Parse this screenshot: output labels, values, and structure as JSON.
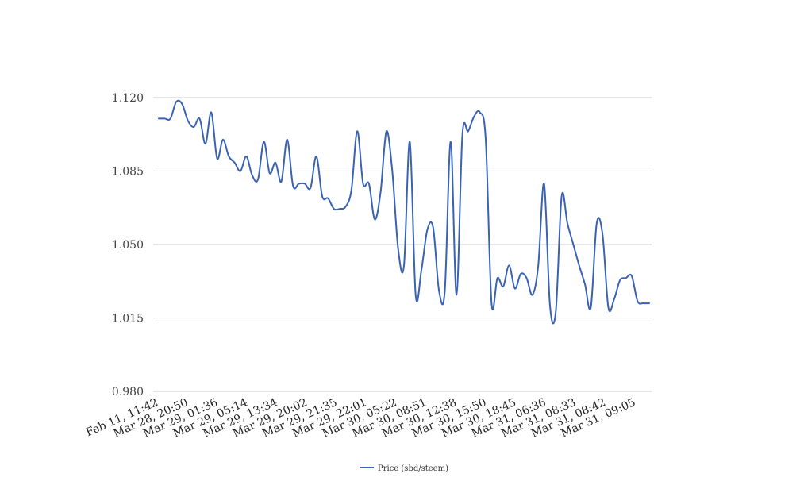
{
  "chart_data": {
    "type": "line",
    "title": "",
    "xlabel": "",
    "ylabel": "",
    "ylim": [
      0.98,
      1.12
    ],
    "y_ticks": [
      "0.980",
      "1.015",
      "1.050",
      "1.085",
      "1.120"
    ],
    "y_tick_values": [
      0.98,
      1.015,
      1.05,
      1.085,
      1.12
    ],
    "grid": true,
    "legend_position": "bottom",
    "x_tick_labels": [
      "Feb 11, 11:42",
      "Mar 28, 20:50",
      "Mar 29, 01:36",
      "Mar 29, 05:14",
      "Mar 29, 13:34",
      "Mar 29, 20:02",
      "Mar 29, 21:35",
      "Mar 29, 22:01",
      "Mar 30, 05:22",
      "Mar 30, 08:51",
      "Mar 30, 12:38",
      "Mar 30, 15:50",
      "Mar 30, 18:45",
      "Mar 31, 06:36",
      "Mar 31, 08:33",
      "Mar 31, 08:42",
      "Mar 31, 09:05"
    ],
    "series": [
      {
        "name": "Price (sbd/steem)",
        "color": "#3a62b4",
        "values": [
          1.11,
          1.11,
          1.11,
          1.118,
          1.117,
          1.109,
          1.106,
          1.11,
          1.098,
          1.113,
          1.091,
          1.1,
          1.092,
          1.089,
          1.085,
          1.092,
          1.083,
          1.081,
          1.099,
          1.084,
          1.089,
          1.08,
          1.1,
          1.078,
          1.079,
          1.079,
          1.077,
          1.092,
          1.073,
          1.072,
          1.067,
          1.067,
          1.068,
          1.076,
          1.104,
          1.079,
          1.079,
          1.062,
          1.075,
          1.104,
          1.085,
          1.048,
          1.04,
          1.099,
          1.026,
          1.038,
          1.057,
          1.058,
          1.028,
          1.028,
          1.099,
          1.026,
          1.102,
          1.104,
          1.111,
          1.113,
          1.1,
          1.022,
          1.034,
          1.03,
          1.04,
          1.029,
          1.036,
          1.034,
          1.026,
          1.04,
          1.079,
          1.021,
          1.018,
          1.073,
          1.06,
          1.05,
          1.04,
          1.031,
          1.02,
          1.06,
          1.055,
          1.02,
          1.024,
          1.033,
          1.034,
          1.035,
          1.023,
          1.022,
          1.022
        ]
      }
    ]
  }
}
